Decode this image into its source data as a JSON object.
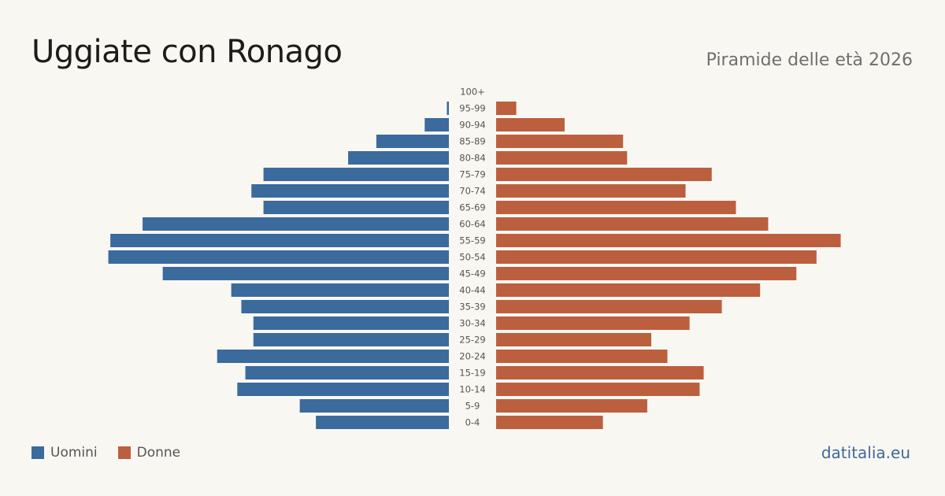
{
  "header": {
    "title": "Uggiate con Ronago",
    "subtitle": "Piramide delle età 2026"
  },
  "footer": {
    "brand": "datitalia.eu"
  },
  "colors": {
    "men": "#3b6a9d",
    "women": "#bc5f3e",
    "background": "#f9f7f2",
    "age_label": "#555555"
  },
  "chart_data": {
    "type": "bar",
    "orientation": "horizontal",
    "layout": "population-pyramid",
    "title": "Uggiate con Ronago",
    "subtitle": "Piramide delle età 2026",
    "categories": [
      "100+",
      "95-99",
      "90-94",
      "85-89",
      "80-84",
      "75-79",
      "70-74",
      "65-69",
      "60-64",
      "55-59",
      "50-54",
      "45-49",
      "40-44",
      "35-39",
      "30-34",
      "25-29",
      "20-24",
      "15-19",
      "10-14",
      "5-9",
      "0-4"
    ],
    "series": [
      {
        "name": "Uomini",
        "color": "#3b6a9d",
        "values": [
          0,
          1,
          12,
          36,
          50,
          92,
          98,
          92,
          152,
          168,
          169,
          142,
          108,
          103,
          97,
          97,
          115,
          101,
          105,
          74,
          66
        ]
      },
      {
        "name": "Donne",
        "color": "#bc5f3e",
        "values": [
          0,
          10,
          34,
          63,
          65,
          107,
          94,
          119,
          135,
          171,
          159,
          149,
          131,
          112,
          96,
          77,
          85,
          103,
          101,
          75,
          53
        ]
      }
    ],
    "xlim": [
      0,
      170
    ],
    "legend": "bottom-left",
    "grid": false
  }
}
